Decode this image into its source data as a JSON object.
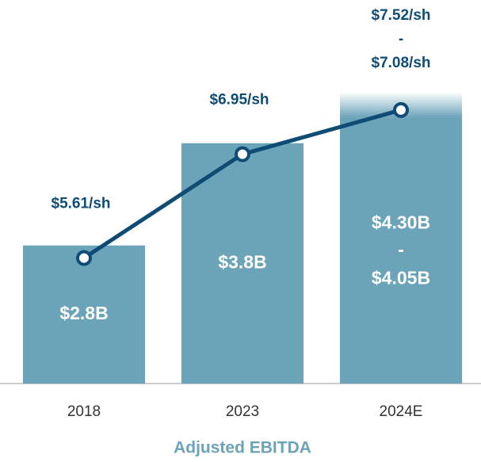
{
  "chart_data": {
    "type": "bar_line",
    "categories": [
      "2018",
      "2023",
      "2024E"
    ],
    "x_axis_label": "Adjusted EBITDA",
    "range_separator": "-",
    "ylim": [
      1.45,
      5.2
    ],
    "y2lim": [
      3.99,
      8.94
    ],
    "series": [
      {
        "type": "bar",
        "color": "#6ba3b9",
        "values": [
          2.8,
          3.8,
          4.3
        ],
        "value_labels": [
          "$2.8B",
          "$3.8B",
          "$4.30B"
        ],
        "range_low": [
          null,
          null,
          4.05
        ],
        "range_low_labels": [
          null,
          null,
          "$4.05B"
        ]
      },
      {
        "type": "line",
        "axis": "y2",
        "color": "#0f4c75",
        "values": [
          5.61,
          6.95,
          7.52
        ],
        "value_labels": [
          "$5.61/sh",
          "$6.95/sh",
          "$7.52/sh"
        ],
        "range_low": [
          null,
          null,
          7.08
        ],
        "range_low_labels": [
          null,
          null,
          "$7.08/sh"
        ]
      }
    ]
  }
}
